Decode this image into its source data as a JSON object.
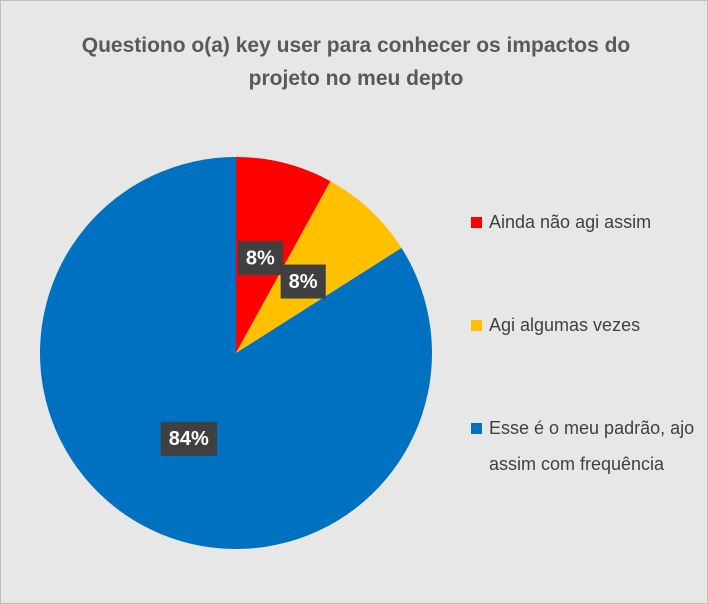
{
  "chart_data": {
    "type": "pie",
    "title": "Questiono o(a) key user para conhecer os impactos do projeto no meu depto",
    "categories": [
      "Ainda não agi assim",
      "Agi algumas vezes",
      "Esse é o meu padrão, ajo assim com frequência"
    ],
    "values": [
      8,
      8,
      84
    ],
    "value_labels": [
      "8%",
      "8%",
      "84%"
    ],
    "colors": [
      "#ff0000",
      "#ffc000",
      "#0070c0"
    ],
    "legend": "right"
  }
}
